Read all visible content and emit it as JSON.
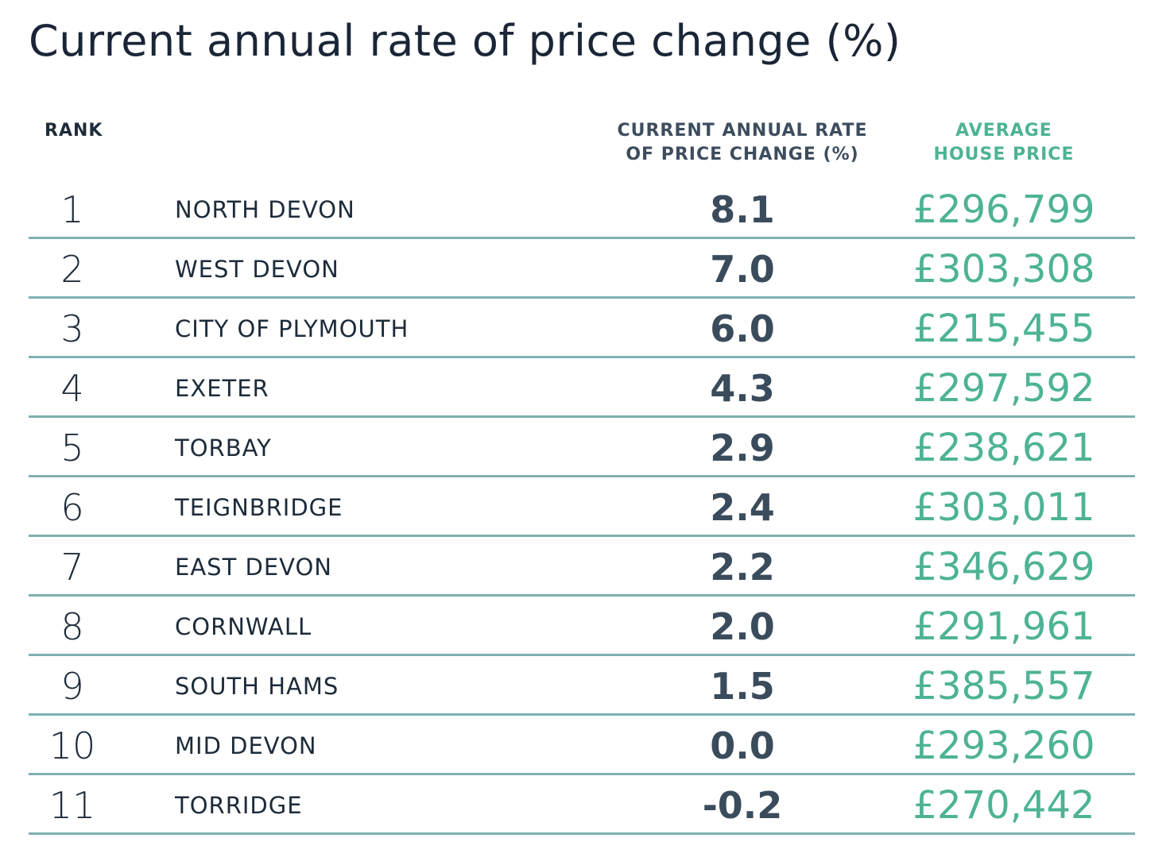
{
  "chart_data": {
    "type": "table",
    "title": "Current annual rate of price change (%)",
    "columns": {
      "rank": "RANK",
      "rate": [
        "CURRENT ANNUAL RATE",
        "OF PRICE CHANGE (%)"
      ],
      "price": [
        "AVERAGE",
        "HOUSE PRICE"
      ]
    },
    "rows": [
      {
        "rank": "1",
        "name": "NORTH DEVON",
        "rate": "8.1",
        "price": "£296,799"
      },
      {
        "rank": "2",
        "name": "WEST DEVON",
        "rate": "7.0",
        "price": "£303,308"
      },
      {
        "rank": "3",
        "name": "CITY OF PLYMOUTH",
        "rate": "6.0",
        "price": "£215,455"
      },
      {
        "rank": "4",
        "name": "EXETER",
        "rate": "4.3",
        "price": "£297,592"
      },
      {
        "rank": "5",
        "name": "TORBAY",
        "rate": "2.9",
        "price": "£238,621"
      },
      {
        "rank": "6",
        "name": "TEIGNBRIDGE",
        "rate": "2.4",
        "price": "£303,011"
      },
      {
        "rank": "7",
        "name": "EAST DEVON",
        "rate": "2.2",
        "price": "£346,629"
      },
      {
        "rank": "8",
        "name": "CORNWALL",
        "rate": "2.0",
        "price": "£291,961"
      },
      {
        "rank": "9",
        "name": "SOUTH HAMS",
        "rate": "1.5",
        "price": "£385,557"
      },
      {
        "rank": "10",
        "name": "MID DEVON",
        "rate": "0.0",
        "price": "£293,260"
      },
      {
        "rank": "11",
        "name": "TORRIDGE",
        "rate": "-0.2",
        "price": "£270,442"
      }
    ]
  },
  "colors": {
    "title": "#1a2637",
    "text": "#1d2b3a",
    "rate": "#3a4b5c",
    "price": "#4db394",
    "divider": "#7fb0b0"
  }
}
